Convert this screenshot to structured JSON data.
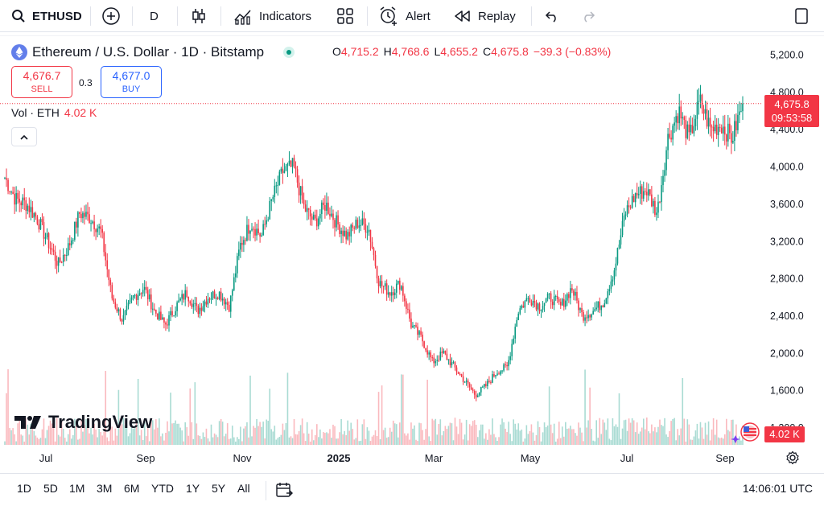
{
  "toolbar": {
    "symbol": "ETHUSD",
    "interval": "D",
    "indicators_label": "Indicators",
    "alert_label": "Alert",
    "replay_label": "Replay"
  },
  "legend": {
    "title": "Ethereum / U.S. Dollar · 1D · Bitstamp",
    "ohlc": {
      "o_label": "O",
      "o": "4,715.2",
      "h_label": "H",
      "h": "4,768.6",
      "l_label": "L",
      "l": "4,655.2",
      "c_label": "C",
      "c": "4,675.8",
      "change": "−39.3 (−0.83%)"
    },
    "sell_price": "4,676.7",
    "sell_label": "SELL",
    "spread": "0.3",
    "buy_price": "4,677.0",
    "buy_label": "BUY",
    "vol_label": "Vol · ETH",
    "vol_value": "4.02 K"
  },
  "price_tag": {
    "price": "4,675.8",
    "countdown": "09:53:58"
  },
  "volume_tag": "4.02 K",
  "brand": "TradingView",
  "colors": {
    "up": "#089981",
    "down": "#f23645",
    "accent": "#2962ff"
  },
  "bottom": {
    "ranges": [
      "1D",
      "5D",
      "1M",
      "3M",
      "6M",
      "YTD",
      "1Y",
      "5Y",
      "All"
    ],
    "time": "14:06:01 UTC"
  },
  "chart_data": {
    "type": "candlestick",
    "y_axis_ticks": [
      "5,200.0",
      "4,800.0",
      "4,400.0",
      "4,000.0",
      "3,600.0",
      "3,200.0",
      "2,800.0",
      "2,400.0",
      "2,000.0",
      "1,600.0",
      "1,200.0"
    ],
    "x_axis_ticks": [
      "Jul",
      "Sep",
      "Nov",
      "2025",
      "Mar",
      "May",
      "Jul",
      "Sep"
    ],
    "ylim": [
      1200,
      5200
    ],
    "last_price": 4675.8,
    "close_path": [
      {
        "x": 0,
        "y": 3880
      },
      {
        "x": 1,
        "y": 3650
      },
      {
        "x": 2,
        "y": 3600
      },
      {
        "x": 3,
        "y": 3450
      },
      {
        "x": 4,
        "y": 3200
      },
      {
        "x": 5,
        "y": 2950
      },
      {
        "x": 6,
        "y": 3150
      },
      {
        "x": 7,
        "y": 3500
      },
      {
        "x": 8,
        "y": 3450
      },
      {
        "x": 9,
        "y": 3300
      },
      {
        "x": 10,
        "y": 2600
      },
      {
        "x": 11,
        "y": 2350
      },
      {
        "x": 12,
        "y": 2600
      },
      {
        "x": 13,
        "y": 2700
      },
      {
        "x": 14,
        "y": 2450
      },
      {
        "x": 15,
        "y": 2300
      },
      {
        "x": 16,
        "y": 2500
      },
      {
        "x": 17,
        "y": 2650
      },
      {
        "x": 18,
        "y": 2450
      },
      {
        "x": 19,
        "y": 2600
      },
      {
        "x": 20,
        "y": 2650
      },
      {
        "x": 21,
        "y": 2500
      },
      {
        "x": 22,
        "y": 3150
      },
      {
        "x": 23,
        "y": 3400
      },
      {
        "x": 24,
        "y": 3250
      },
      {
        "x": 25,
        "y": 3650
      },
      {
        "x": 26,
        "y": 3950
      },
      {
        "x": 27,
        "y": 4000
      },
      {
        "x": 28,
        "y": 3550
      },
      {
        "x": 29,
        "y": 3400
      },
      {
        "x": 30,
        "y": 3600
      },
      {
        "x": 31,
        "y": 3400
      },
      {
        "x": 32,
        "y": 3250
      },
      {
        "x": 33,
        "y": 3400
      },
      {
        "x": 34,
        "y": 3350
      },
      {
        "x": 35,
        "y": 2750
      },
      {
        "x": 36,
        "y": 2650
      },
      {
        "x": 37,
        "y": 2750
      },
      {
        "x": 38,
        "y": 2300
      },
      {
        "x": 39,
        "y": 2150
      },
      {
        "x": 40,
        "y": 1900
      },
      {
        "x": 41,
        "y": 2000
      },
      {
        "x": 42,
        "y": 1850
      },
      {
        "x": 43,
        "y": 1700
      },
      {
        "x": 44,
        "y": 1550
      },
      {
        "x": 45,
        "y": 1650
      },
      {
        "x": 46,
        "y": 1800
      },
      {
        "x": 47,
        "y": 1850
      },
      {
        "x": 48,
        "y": 2450
      },
      {
        "x": 49,
        "y": 2600
      },
      {
        "x": 50,
        "y": 2500
      },
      {
        "x": 51,
        "y": 2600
      },
      {
        "x": 52,
        "y": 2500
      },
      {
        "x": 53,
        "y": 2700
      },
      {
        "x": 54,
        "y": 2400
      },
      {
        "x": 55,
        "y": 2450
      },
      {
        "x": 56,
        "y": 2550
      },
      {
        "x": 57,
        "y": 2900
      },
      {
        "x": 58,
        "y": 3500
      },
      {
        "x": 59,
        "y": 3700
      },
      {
        "x": 60,
        "y": 3750
      },
      {
        "x": 61,
        "y": 3500
      },
      {
        "x": 62,
        "y": 4300
      },
      {
        "x": 63,
        "y": 4600
      },
      {
        "x": 64,
        "y": 4300
      },
      {
        "x": 65,
        "y": 4700
      },
      {
        "x": 66,
        "y": 4400
      },
      {
        "x": 67,
        "y": 4450
      },
      {
        "x": 68,
        "y": 4300
      },
      {
        "x": 69,
        "y": 4675
      }
    ]
  }
}
